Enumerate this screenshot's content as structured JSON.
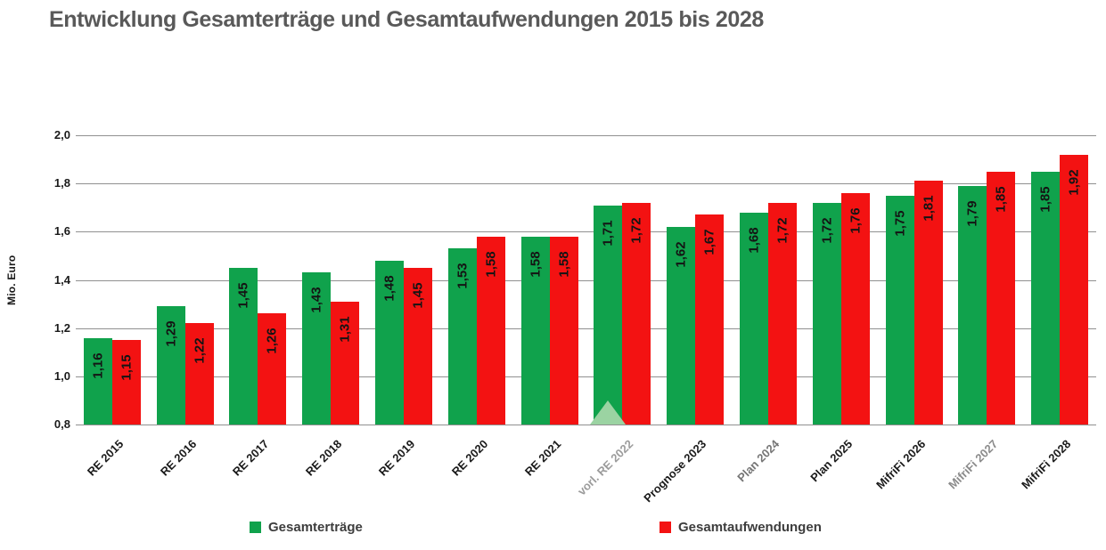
{
  "title": "Entwicklung Gesamterträge und Gesamtaufwendungen 2015 bis 2028",
  "chart_data": {
    "type": "bar",
    "title": "Entwicklung Gesamterträge und Gesamtaufwendungen 2015 bis 2028",
    "xlabel": "",
    "ylabel": "Mio. Euro",
    "ylim": [
      0.8,
      2.0
    ],
    "ytick_step": 0.2,
    "yticks_top_to_bottom": [
      "2,0",
      "1,8",
      "1,6",
      "1,4",
      "1,2",
      "1,0",
      "0,8"
    ],
    "grid": true,
    "gridline_color": "#909090",
    "legend_position": "bottom",
    "categories": [
      "RE 2015",
      "RE 2016",
      "RE 2017",
      "RE 2018",
      "RE 2019",
      "RE 2020",
      "RE 2021",
      "vorl. RE 2022",
      "Prognose 2023",
      "Plan 2024",
      "Plan 2025",
      "MifriFi 2026",
      "MifriFi 2027",
      "MifriFi 2028"
    ],
    "category_label_colors": [
      "#1a1a1a",
      "#1a1a1a",
      "#1a1a1a",
      "#1a1a1a",
      "#1a1a1a",
      "#1a1a1a",
      "#1a1a1a",
      "#9b9b9b",
      "#1a1a1a",
      "#757575",
      "#1a1a1a",
      "#1a1a1a",
      "#8a8a8a",
      "#1a1a1a"
    ],
    "series": [
      {
        "name": "Gesamterträge",
        "color": "#10a24c",
        "values": [
          1.16,
          1.29,
          1.45,
          1.43,
          1.48,
          1.53,
          1.58,
          1.71,
          1.62,
          1.68,
          1.72,
          1.75,
          1.79,
          1.85
        ],
        "labels": [
          "1,16",
          "1,29",
          "1,45",
          "1,43",
          "1,48",
          "1,53",
          "1,58",
          "1,71",
          "1,62",
          "1,68",
          "1,72",
          "1,75",
          "1,79",
          "1,85"
        ]
      },
      {
        "name": "Gesamtaufwendungen",
        "color": "#f31212",
        "values": [
          1.15,
          1.22,
          1.26,
          1.31,
          1.45,
          1.58,
          1.58,
          1.72,
          1.67,
          1.72,
          1.76,
          1.81,
          1.85,
          1.92
        ],
        "labels": [
          "1,15",
          "1,22",
          "1,26",
          "1,31",
          "1,45",
          "1,58",
          "1,58",
          "1,72",
          "1,67",
          "1,72",
          "1,76",
          "1,81",
          "1,85",
          "1,92"
        ]
      }
    ]
  },
  "legend": {
    "items": [
      {
        "label": "Gesamterträge",
        "color": "#10a24c"
      },
      {
        "label": "Gesamtaufwendungen",
        "color": "#f31212"
      }
    ]
  },
  "watermark": {
    "shape": "triangle",
    "color": "#9bd3a2",
    "category_index": 7
  }
}
